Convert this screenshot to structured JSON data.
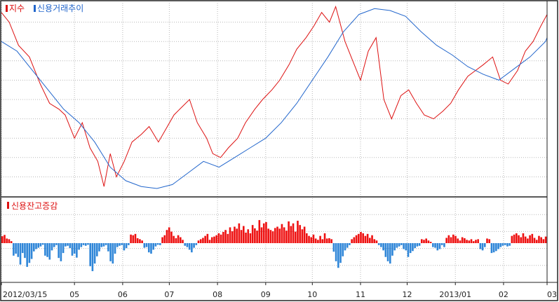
{
  "colors": {
    "index": "#dd1111",
    "credit_trend": "#2266cc",
    "increase_bar": "#ee1111",
    "decrease_bar": "#2f86d8",
    "grid": "#b8b8b8",
    "frame": "#222222"
  },
  "legend": {
    "index_label": "지수",
    "credit_trend_label": "신용거래추이",
    "balance_change_label": "신용잔고증감"
  },
  "chart_data": [
    {
      "type": "line",
      "grid": true,
      "legend_placement": "top-left",
      "x_axis": "date",
      "xlim": [
        "2012-03-15",
        "2013-03-01"
      ],
      "ylim": [
        0,
        100
      ],
      "tick_labels": [
        "2012/03/15",
        "05",
        "06",
        "07",
        "08",
        "09",
        "10",
        "11",
        "12",
        "2013/01",
        "02",
        "03"
      ],
      "tick_dates": [
        "2012-03-15",
        "2012-05-01",
        "2012-06-01",
        "2012-07-01",
        "2012-08-01",
        "2012-09-01",
        "2012-10-01",
        "2012-11-01",
        "2012-12-01",
        "2013-01-01",
        "2013-02-01",
        "2013-03-01"
      ],
      "series": [
        {
          "name": "지수",
          "points": [
            [
              "2012-03-15",
              95
            ],
            [
              "2012-03-20",
              90
            ],
            [
              "2012-03-26",
              78
            ],
            [
              "2012-04-02",
              72
            ],
            [
              "2012-04-09",
              58
            ],
            [
              "2012-04-15",
              48
            ],
            [
              "2012-04-21",
              45
            ],
            [
              "2012-04-25",
              42
            ],
            [
              "2012-05-01",
              30
            ],
            [
              "2012-05-06",
              38
            ],
            [
              "2012-05-11",
              25
            ],
            [
              "2012-05-16",
              18
            ],
            [
              "2012-05-20",
              5
            ],
            [
              "2012-05-24",
              22
            ],
            [
              "2012-05-28",
              10
            ],
            [
              "2012-06-02",
              18
            ],
            [
              "2012-06-07",
              28
            ],
            [
              "2012-06-13",
              32
            ],
            [
              "2012-06-18",
              36
            ],
            [
              "2012-06-24",
              28
            ],
            [
              "2012-06-29",
              35
            ],
            [
              "2012-07-04",
              42
            ],
            [
              "2012-07-09",
              46
            ],
            [
              "2012-07-14",
              50
            ],
            [
              "2012-07-19",
              38
            ],
            [
              "2012-07-25",
              30
            ],
            [
              "2012-07-29",
              22
            ],
            [
              "2012-08-03",
              20
            ],
            [
              "2012-08-08",
              25
            ],
            [
              "2012-08-14",
              30
            ],
            [
              "2012-08-19",
              38
            ],
            [
              "2012-08-25",
              45
            ],
            [
              "2012-08-30",
              50
            ],
            [
              "2012-09-05",
              55
            ],
            [
              "2012-09-10",
              60
            ],
            [
              "2012-09-16",
              68
            ],
            [
              "2012-09-21",
              76
            ],
            [
              "2012-09-27",
              82
            ],
            [
              "2012-10-02",
              88
            ],
            [
              "2012-10-07",
              95
            ],
            [
              "2012-10-12",
              90
            ],
            [
              "2012-10-16",
              98
            ],
            [
              "2012-10-22",
              80
            ],
            [
              "2012-10-27",
              70
            ],
            [
              "2012-11-01",
              60
            ],
            [
              "2012-11-06",
              75
            ],
            [
              "2012-11-11",
              82
            ],
            [
              "2012-11-16",
              50
            ],
            [
              "2012-11-21",
              40
            ],
            [
              "2012-11-27",
              52
            ],
            [
              "2012-12-02",
              55
            ],
            [
              "2012-12-07",
              48
            ],
            [
              "2012-12-12",
              42
            ],
            [
              "2012-12-18",
              40
            ],
            [
              "2012-12-24",
              44
            ],
            [
              "2012-12-29",
              48
            ],
            [
              "2013-01-03",
              55
            ],
            [
              "2013-01-09",
              62
            ],
            [
              "2013-01-14",
              65
            ],
            [
              "2013-01-19",
              68
            ],
            [
              "2013-01-25",
              72
            ],
            [
              "2013-01-30",
              60
            ],
            [
              "2013-02-04",
              58
            ],
            [
              "2013-02-10",
              65
            ],
            [
              "2013-02-15",
              75
            ],
            [
              "2013-02-20",
              80
            ],
            [
              "2013-02-25",
              88
            ],
            [
              "2013-03-01",
              94
            ]
          ]
        },
        {
          "name": "신용거래추이",
          "points": [
            [
              "2012-03-15",
              80
            ],
            [
              "2012-03-25",
              75
            ],
            [
              "2012-04-04",
              65
            ],
            [
              "2012-04-14",
              55
            ],
            [
              "2012-04-24",
              45
            ],
            [
              "2012-05-04",
              38
            ],
            [
              "2012-05-14",
              28
            ],
            [
              "2012-05-24",
              15
            ],
            [
              "2012-06-03",
              8
            ],
            [
              "2012-06-13",
              5
            ],
            [
              "2012-06-23",
              4
            ],
            [
              "2012-07-03",
              6
            ],
            [
              "2012-07-13",
              12
            ],
            [
              "2012-07-23",
              18
            ],
            [
              "2012-08-02",
              15
            ],
            [
              "2012-08-12",
              20
            ],
            [
              "2012-08-22",
              25
            ],
            [
              "2012-09-01",
              30
            ],
            [
              "2012-09-11",
              38
            ],
            [
              "2012-09-21",
              48
            ],
            [
              "2012-10-01",
              60
            ],
            [
              "2012-10-11",
              72
            ],
            [
              "2012-10-21",
              85
            ],
            [
              "2012-10-31",
              94
            ],
            [
              "2012-11-10",
              97
            ],
            [
              "2012-11-20",
              96
            ],
            [
              "2012-11-30",
              93
            ],
            [
              "2012-12-10",
              85
            ],
            [
              "2012-12-20",
              78
            ],
            [
              "2012-12-30",
              73
            ],
            [
              "2013-01-09",
              67
            ],
            [
              "2013-01-19",
              63
            ],
            [
              "2013-01-29",
              60
            ],
            [
              "2013-02-08",
              66
            ],
            [
              "2013-02-18",
              72
            ],
            [
              "2013-02-28",
              80
            ],
            [
              "2013-03-01",
              82
            ]
          ]
        }
      ]
    },
    {
      "type": "bar",
      "grid": true,
      "legend_placement": "top-left",
      "title": "신용잔고증감",
      "ylim": [
        -100,
        100
      ],
      "x_start": "2012-03-15",
      "x_end": "2013-03-01",
      "values": [
        21,
        25,
        14,
        12,
        6,
        -38,
        -32,
        -42,
        -65,
        -30,
        -45,
        -72,
        -60,
        -48,
        -25,
        -18,
        -14,
        -10,
        -5,
        -38,
        -42,
        -50,
        -22,
        -12,
        -6,
        -45,
        -55,
        -30,
        -10,
        -8,
        -15,
        -38,
        -32,
        -44,
        -20,
        -12,
        -6,
        -8,
        -5,
        -70,
        -85,
        -62,
        -40,
        -25,
        -12,
        -10,
        -6,
        -25,
        -55,
        -62,
        -32,
        -12,
        -8,
        -6,
        -22,
        -15,
        -6,
        26,
        24,
        28,
        15,
        12,
        8,
        -14,
        -12,
        -28,
        -32,
        -20,
        -10,
        -5,
        -6,
        18,
        24,
        40,
        48,
        35,
        22,
        15,
        24,
        18,
        10,
        -8,
        -12,
        -20,
        -28,
        -14,
        -6,
        8,
        12,
        16,
        22,
        28,
        10,
        18,
        20,
        24,
        30,
        26,
        34,
        40,
        28,
        48,
        36,
        50,
        44,
        60,
        40,
        52,
        32,
        42,
        30,
        55,
        45,
        38,
        70,
        48,
        60,
        64,
        44,
        40,
        36,
        46,
        50,
        44,
        58,
        48,
        38,
        66,
        52,
        60,
        35,
        68,
        55,
        42,
        50,
        30,
        22,
        18,
        26,
        14,
        10,
        22,
        12,
        30,
        14,
        15,
        12,
        -26,
        -55,
        -75,
        -60,
        -40,
        -22,
        -14,
        -6,
        12,
        18,
        24,
        28,
        34,
        30,
        22,
        28,
        16,
        24,
        12,
        8,
        -6,
        -12,
        -22,
        -42,
        -55,
        -62,
        -38,
        -22,
        -14,
        -10,
        -6,
        -18,
        -22,
        -42,
        -30,
        -24,
        -15,
        -10,
        -8,
        12,
        10,
        14,
        8,
        4,
        -12,
        -14,
        -22,
        -18,
        -6,
        -12,
        16,
        24,
        18,
        26,
        22,
        14,
        8,
        18,
        15,
        10,
        8,
        12,
        6,
        10,
        12,
        -18,
        -22,
        -12,
        14,
        12,
        -30,
        -28,
        -24,
        -18,
        -12,
        -8,
        -6,
        -10,
        -8,
        22,
        26,
        30,
        24,
        18,
        30,
        20,
        14,
        24,
        28,
        16,
        10,
        22,
        18,
        12,
        20
      ]
    }
  ]
}
